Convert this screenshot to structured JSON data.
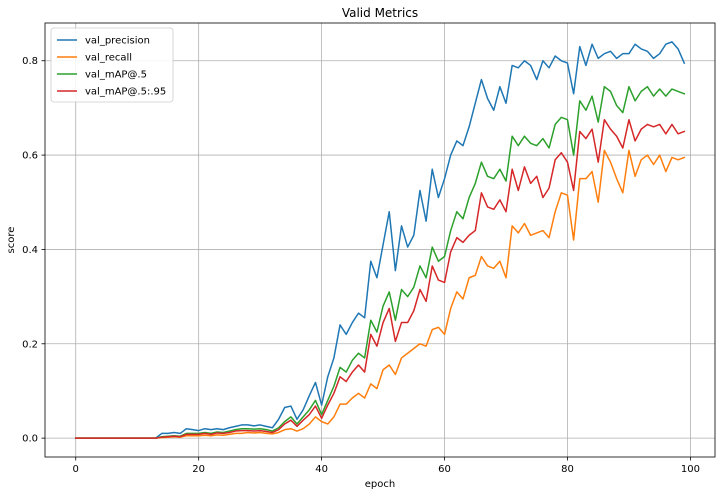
{
  "chart_data": {
    "type": "line",
    "title": "Valid Metrics",
    "xlabel": "epoch",
    "ylabel": "score",
    "xlim": [
      -5,
      104
    ],
    "ylim": [
      -0.04,
      0.88
    ],
    "xticks": [
      0,
      20,
      40,
      60,
      80,
      100
    ],
    "yticks": [
      0.0,
      0.2,
      0.4,
      0.6,
      0.8
    ],
    "xtick_labels": [
      "0",
      "20",
      "40",
      "60",
      "80",
      "100"
    ],
    "ytick_labels": [
      "0.0",
      "0.2",
      "0.4",
      "0.6",
      "0.8"
    ],
    "grid": true,
    "legend_position": "upper-left",
    "x": [
      0,
      1,
      2,
      3,
      4,
      5,
      6,
      7,
      8,
      9,
      10,
      11,
      12,
      13,
      14,
      15,
      16,
      17,
      18,
      19,
      20,
      21,
      22,
      23,
      24,
      25,
      26,
      27,
      28,
      29,
      30,
      31,
      32,
      33,
      34,
      35,
      36,
      37,
      38,
      39,
      40,
      41,
      42,
      43,
      44,
      45,
      46,
      47,
      48,
      49,
      50,
      51,
      52,
      53,
      54,
      55,
      56,
      57,
      58,
      59,
      60,
      61,
      62,
      63,
      64,
      65,
      66,
      67,
      68,
      69,
      70,
      71,
      72,
      73,
      74,
      75,
      76,
      77,
      78,
      79,
      80,
      81,
      82,
      83,
      84,
      85,
      86,
      87,
      88,
      89,
      90,
      91,
      92,
      93,
      94,
      95,
      96,
      97,
      98,
      99
    ],
    "series": [
      {
        "name": "val_precision",
        "color": "#1f77b4",
        "values": [
          0,
          0,
          0,
          0,
          0,
          0,
          0,
          0,
          0,
          0,
          0,
          0,
          0,
          0,
          0.01,
          0.01,
          0.012,
          0.01,
          0.02,
          0.018,
          0.016,
          0.02,
          0.018,
          0.02,
          0.018,
          0.022,
          0.025,
          0.028,
          0.028,
          0.026,
          0.028,
          0.025,
          0.022,
          0.04,
          0.065,
          0.068,
          0.04,
          0.06,
          0.09,
          0.118,
          0.07,
          0.13,
          0.17,
          0.24,
          0.22,
          0.245,
          0.265,
          0.255,
          0.375,
          0.34,
          0.41,
          0.48,
          0.355,
          0.45,
          0.405,
          0.43,
          0.525,
          0.46,
          0.57,
          0.51,
          0.55,
          0.6,
          0.63,
          0.62,
          0.66,
          0.71,
          0.76,
          0.72,
          0.695,
          0.745,
          0.71,
          0.79,
          0.785,
          0.8,
          0.79,
          0.76,
          0.8,
          0.785,
          0.81,
          0.8,
          0.795,
          0.73,
          0.83,
          0.79,
          0.835,
          0.805,
          0.815,
          0.82,
          0.805,
          0.815,
          0.815,
          0.835,
          0.825,
          0.82,
          0.805,
          0.815,
          0.835,
          0.84,
          0.825,
          0.795
        ]
      },
      {
        "name": "val_recall",
        "color": "#ff7f0e",
        "values": [
          0,
          0,
          0,
          0,
          0,
          0,
          0,
          0,
          0,
          0,
          0,
          0,
          0,
          0,
          0.001,
          0.002,
          0.003,
          0.002,
          0.005,
          0.005,
          0.005,
          0.006,
          0.005,
          0.007,
          0.006,
          0.008,
          0.01,
          0.01,
          0.012,
          0.011,
          0.012,
          0.01,
          0.009,
          0.012,
          0.018,
          0.02,
          0.015,
          0.02,
          0.03,
          0.045,
          0.035,
          0.03,
          0.045,
          0.072,
          0.072,
          0.085,
          0.095,
          0.085,
          0.115,
          0.105,
          0.145,
          0.155,
          0.135,
          0.17,
          0.18,
          0.19,
          0.2,
          0.195,
          0.23,
          0.235,
          0.22,
          0.275,
          0.31,
          0.295,
          0.34,
          0.345,
          0.385,
          0.365,
          0.36,
          0.375,
          0.34,
          0.45,
          0.435,
          0.455,
          0.43,
          0.435,
          0.44,
          0.425,
          0.48,
          0.52,
          0.515,
          0.42,
          0.55,
          0.55,
          0.565,
          0.5,
          0.61,
          0.585,
          0.55,
          0.52,
          0.61,
          0.555,
          0.59,
          0.6,
          0.58,
          0.6,
          0.565,
          0.595,
          0.59,
          0.595
        ]
      },
      {
        "name": "val_mAP@.5",
        "color": "#2ca02c",
        "values": [
          0,
          0,
          0,
          0,
          0,
          0,
          0,
          0,
          0,
          0,
          0,
          0,
          0,
          0,
          0.003,
          0.004,
          0.005,
          0.004,
          0.01,
          0.01,
          0.01,
          0.012,
          0.01,
          0.013,
          0.012,
          0.015,
          0.018,
          0.02,
          0.02,
          0.019,
          0.02,
          0.018,
          0.015,
          0.022,
          0.035,
          0.045,
          0.03,
          0.045,
          0.06,
          0.08,
          0.05,
          0.08,
          0.11,
          0.15,
          0.14,
          0.165,
          0.18,
          0.17,
          0.25,
          0.225,
          0.28,
          0.31,
          0.25,
          0.315,
          0.3,
          0.32,
          0.365,
          0.34,
          0.405,
          0.375,
          0.385,
          0.44,
          0.48,
          0.465,
          0.51,
          0.54,
          0.585,
          0.555,
          0.55,
          0.57,
          0.545,
          0.64,
          0.62,
          0.64,
          0.625,
          0.62,
          0.635,
          0.615,
          0.665,
          0.68,
          0.675,
          0.6,
          0.715,
          0.695,
          0.725,
          0.67,
          0.745,
          0.735,
          0.705,
          0.69,
          0.745,
          0.715,
          0.735,
          0.745,
          0.725,
          0.74,
          0.725,
          0.74,
          0.735,
          0.73
        ]
      },
      {
        "name": "val_mAP@.5:.95",
        "color": "#d62728",
        "values": [
          0,
          0,
          0,
          0,
          0,
          0,
          0,
          0,
          0,
          0,
          0,
          0,
          0,
          0,
          0.002,
          0.003,
          0.004,
          0.003,
          0.008,
          0.008,
          0.008,
          0.01,
          0.008,
          0.011,
          0.01,
          0.012,
          0.015,
          0.016,
          0.016,
          0.015,
          0.016,
          0.014,
          0.012,
          0.018,
          0.03,
          0.038,
          0.025,
          0.038,
          0.05,
          0.068,
          0.042,
          0.07,
          0.095,
          0.13,
          0.12,
          0.14,
          0.155,
          0.14,
          0.22,
          0.195,
          0.245,
          0.275,
          0.205,
          0.245,
          0.245,
          0.27,
          0.315,
          0.29,
          0.365,
          0.335,
          0.33,
          0.395,
          0.425,
          0.415,
          0.43,
          0.44,
          0.52,
          0.49,
          0.485,
          0.505,
          0.48,
          0.57,
          0.525,
          0.575,
          0.54,
          0.555,
          0.51,
          0.53,
          0.59,
          0.605,
          0.585,
          0.525,
          0.65,
          0.635,
          0.655,
          0.585,
          0.675,
          0.655,
          0.64,
          0.615,
          0.675,
          0.63,
          0.655,
          0.665,
          0.66,
          0.665,
          0.645,
          0.665,
          0.645,
          0.65
        ]
      }
    ]
  }
}
